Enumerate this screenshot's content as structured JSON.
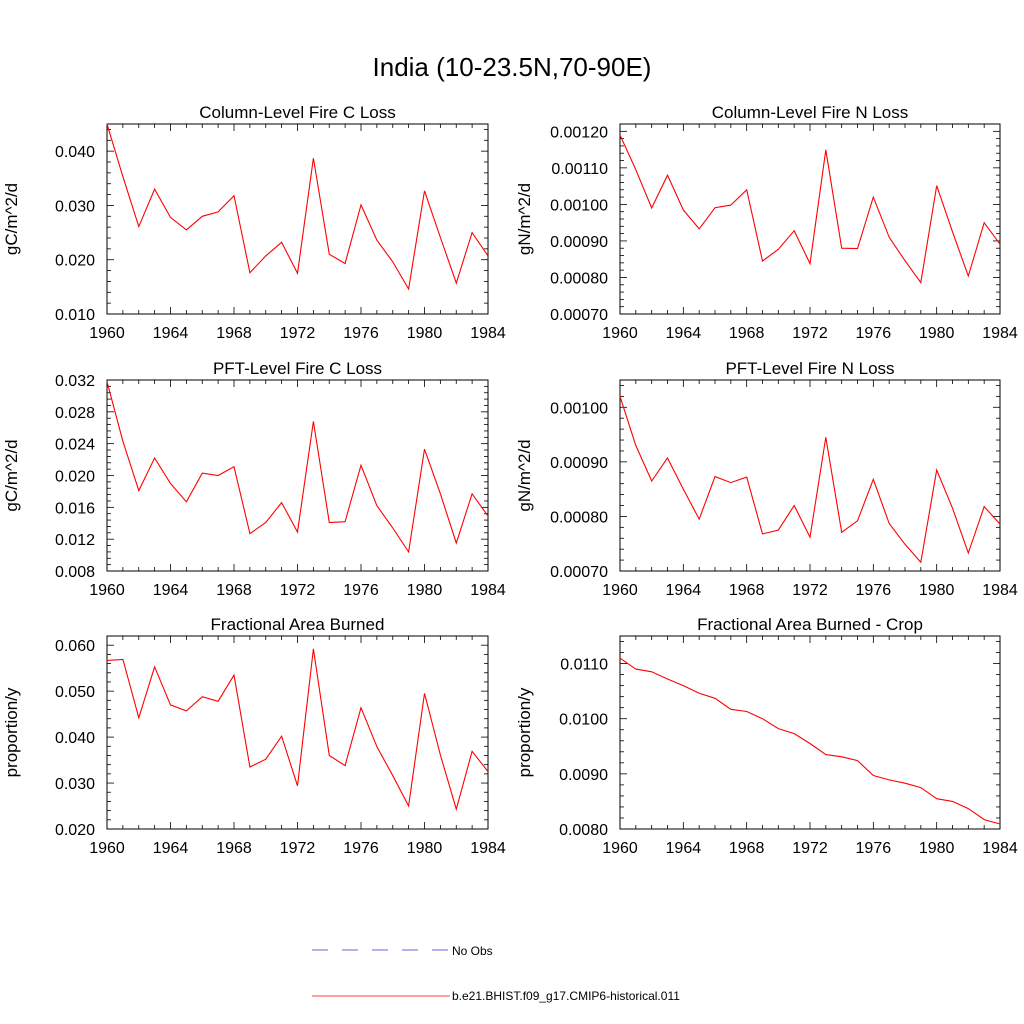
{
  "main_title": "India (10-23.5N,70-90E)",
  "colors": {
    "model": "#ff0000",
    "obs": "#3333cc",
    "axis": "#000000"
  },
  "legend": {
    "obs_label": "No Obs",
    "model_label": "b.e21.BHIST.f09_g17.CMIP6-historical.011",
    "placement": "bottom-center"
  },
  "chart_data": [
    {
      "type": "line",
      "title": "Column-Level Fire C Loss",
      "ylabel": "gC/m^2/d",
      "xlim": [
        1960,
        1984
      ],
      "ylim": [
        0.01,
        0.045
      ],
      "xticks": [
        "1960",
        "1964",
        "1968",
        "1972",
        "1976",
        "1980",
        "1984"
      ],
      "yticks": [
        "0.010",
        "0.020",
        "0.030",
        "0.040"
      ],
      "grid": false,
      "series": [
        {
          "name": "b.e21.BHIST.f09_g17.CMIP6-historical.011",
          "x": [
            1960,
            1961,
            1962,
            1963,
            1964,
            1965,
            1966,
            1967,
            1968,
            1969,
            1970,
            1971,
            1972,
            1973,
            1974,
            1975,
            1976,
            1977,
            1978,
            1979,
            1980,
            1981,
            1982,
            1983,
            1984
          ],
          "y": [
            0.045,
            0.0353,
            0.0261,
            0.033,
            0.0278,
            0.0255,
            0.028,
            0.0288,
            0.0318,
            0.0176,
            0.0207,
            0.0232,
            0.0175,
            0.0387,
            0.021,
            0.0193,
            0.0301,
            0.0236,
            0.0196,
            0.0146,
            0.0327,
            0.0241,
            0.0157,
            0.025,
            0.0207
          ]
        }
      ]
    },
    {
      "type": "line",
      "title": "Column-Level Fire N Loss",
      "ylabel": "gN/m^2/d",
      "xlim": [
        1960,
        1984
      ],
      "ylim": [
        0.0007,
        0.00122
      ],
      "xticks": [
        "1960",
        "1964",
        "1968",
        "1972",
        "1976",
        "1980",
        "1984"
      ],
      "yticks": [
        "0.00070",
        "0.00080",
        "0.00090",
        "0.00100",
        "0.00110",
        "0.00120"
      ],
      "grid": false,
      "series": [
        {
          "name": "b.e21.BHIST.f09_g17.CMIP6-historical.011",
          "x": [
            1960,
            1961,
            1962,
            1963,
            1964,
            1965,
            1966,
            1967,
            1968,
            1969,
            1970,
            1971,
            1972,
            1973,
            1974,
            1975,
            1976,
            1977,
            1978,
            1979,
            1980,
            1981,
            1982,
            1983,
            1984
          ],
          "y": [
            0.00119,
            0.001095,
            0.00099,
            0.00108,
            0.000985,
            0.000933,
            0.000991,
            0.000998,
            0.00104,
            0.000845,
            0.000877,
            0.000928,
            0.000838,
            0.001149,
            0.00088,
            0.000879,
            0.00102,
            0.00091,
            0.000846,
            0.000786,
            0.001051,
            0.000925,
            0.000804,
            0.00095,
            0.000891
          ]
        }
      ]
    },
    {
      "type": "line",
      "title": "PFT-Level Fire C Loss",
      "ylabel": "gC/m^2/d",
      "xlim": [
        1960,
        1984
      ],
      "ylim": [
        0.008,
        0.032
      ],
      "xticks": [
        "1960",
        "1964",
        "1968",
        "1972",
        "1976",
        "1980",
        "1984"
      ],
      "yticks": [
        "0.008",
        "0.012",
        "0.016",
        "0.020",
        "0.024",
        "0.028",
        "0.032"
      ],
      "grid": false,
      "series": [
        {
          "name": "b.e21.BHIST.f09_g17.CMIP6-historical.011",
          "x": [
            1960,
            1961,
            1962,
            1963,
            1964,
            1965,
            1966,
            1967,
            1968,
            1969,
            1970,
            1971,
            1972,
            1973,
            1974,
            1975,
            1976,
            1977,
            1978,
            1979,
            1980,
            1981,
            1982,
            1983,
            1984
          ],
          "y": [
            0.0318,
            0.0243,
            0.0181,
            0.0222,
            0.019,
            0.0167,
            0.0203,
            0.02,
            0.0211,
            0.0127,
            0.0141,
            0.0166,
            0.0129,
            0.0268,
            0.0141,
            0.0142,
            0.0213,
            0.0162,
            0.0134,
            0.0104,
            0.0233,
            0.0177,
            0.0115,
            0.0177,
            0.0149
          ]
        }
      ]
    },
    {
      "type": "line",
      "title": "PFT-Level Fire N Loss",
      "ylabel": "gN/m^2/d",
      "xlim": [
        1960,
        1984
      ],
      "ylim": [
        0.0007,
        0.00105
      ],
      "xticks": [
        "1960",
        "1964",
        "1968",
        "1972",
        "1976",
        "1980",
        "1984"
      ],
      "yticks": [
        "0.00070",
        "0.00080",
        "0.00090",
        "0.00100"
      ],
      "grid": false,
      "series": [
        {
          "name": "b.e21.BHIST.f09_g17.CMIP6-historical.011",
          "x": [
            1960,
            1961,
            1962,
            1963,
            1964,
            1965,
            1966,
            1967,
            1968,
            1969,
            1970,
            1971,
            1972,
            1973,
            1974,
            1975,
            1976,
            1977,
            1978,
            1979,
            1980,
            1981,
            1982,
            1983,
            1984
          ],
          "y": [
            0.00102,
            0.00093,
            0.000865,
            0.000907,
            0.00085,
            0.000795,
            0.000873,
            0.000862,
            0.000872,
            0.000768,
            0.000775,
            0.00082,
            0.000762,
            0.000945,
            0.000771,
            0.000792,
            0.000868,
            0.000787,
            0.000749,
            0.000716,
            0.000885,
            0.000815,
            0.000733,
            0.000818,
            0.000786
          ]
        }
      ]
    },
    {
      "type": "line",
      "title": "Fractional Area Burned",
      "ylabel": "proportion/y",
      "xlim": [
        1960,
        1984
      ],
      "ylim": [
        0.02,
        0.062
      ],
      "xticks": [
        "1960",
        "1964",
        "1968",
        "1972",
        "1976",
        "1980",
        "1984"
      ],
      "yticks": [
        "0.020",
        "0.030",
        "0.040",
        "0.050",
        "0.060"
      ],
      "grid": false,
      "series": [
        {
          "name": "b.e21.BHIST.f09_g17.CMIP6-historical.011",
          "x": [
            1960,
            1961,
            1962,
            1963,
            1964,
            1965,
            1966,
            1967,
            1968,
            1969,
            1970,
            1971,
            1972,
            1973,
            1974,
            1975,
            1976,
            1977,
            1978,
            1979,
            1980,
            1981,
            1982,
            1983,
            1984
          ],
          "y": [
            0.0567,
            0.0569,
            0.0442,
            0.0553,
            0.047,
            0.0457,
            0.0488,
            0.0478,
            0.0535,
            0.0335,
            0.0352,
            0.0402,
            0.0294,
            0.0592,
            0.036,
            0.0338,
            0.0464,
            0.0379,
            0.0316,
            0.025,
            0.0495,
            0.0361,
            0.0243,
            0.0369,
            0.0325
          ]
        }
      ]
    },
    {
      "type": "line",
      "title": "Fractional Area Burned - Crop",
      "ylabel": "proportion/y",
      "xlim": [
        1960,
        1984
      ],
      "ylim": [
        0.008,
        0.0115
      ],
      "xticks": [
        "1960",
        "1964",
        "1968",
        "1972",
        "1976",
        "1980",
        "1984"
      ],
      "yticks": [
        "0.0080",
        "0.0090",
        "0.0100",
        "0.0110"
      ],
      "grid": false,
      "series": [
        {
          "name": "b.e21.BHIST.f09_g17.CMIP6-historical.011",
          "x": [
            1960,
            1961,
            1962,
            1963,
            1964,
            1965,
            1966,
            1967,
            1968,
            1969,
            1970,
            1971,
            1972,
            1973,
            1974,
            1975,
            1976,
            1977,
            1978,
            1979,
            1980,
            1981,
            1982,
            1983,
            1984
          ],
          "y": [
            0.0111,
            0.0109,
            0.01085,
            0.01072,
            0.0106,
            0.01046,
            0.01037,
            0.01017,
            0.01013,
            0.01,
            0.00982,
            0.00973,
            0.00955,
            0.00935,
            0.00931,
            0.00924,
            0.00897,
            0.00889,
            0.00883,
            0.00875,
            0.00855,
            0.0085,
            0.00837,
            0.00817,
            0.00809
          ]
        }
      ]
    }
  ]
}
